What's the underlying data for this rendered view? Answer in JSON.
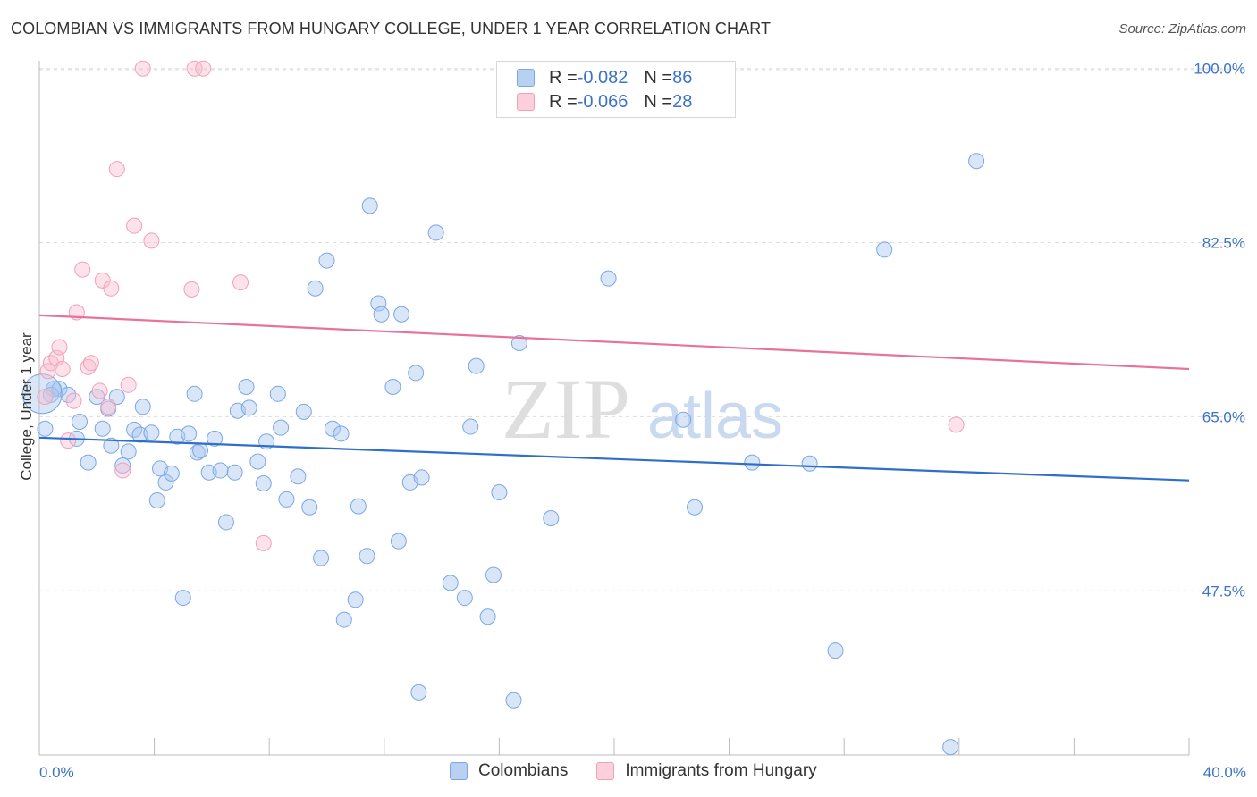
{
  "title": "COLOMBIAN VS IMMIGRANTS FROM HUNGARY COLLEGE, UNDER 1 YEAR CORRELATION CHART",
  "source": "Source: ZipAtlas.com",
  "watermark": {
    "zip": "ZIP",
    "atlas": "atlas"
  },
  "legend": [
    {
      "r_label": "R = ",
      "r_value": "-0.082",
      "n_label": "N = ",
      "n_value": "86"
    },
    {
      "r_label": "R = ",
      "r_value": "-0.066",
      "n_label": "N = ",
      "n_value": "28"
    }
  ],
  "bottom_legend": [
    "Colombians",
    "Immigrants from Hungary"
  ],
  "chart_data": {
    "type": "scatter",
    "title": "COLOMBIAN VS IMMIGRANTS FROM HUNGARY COLLEGE, UNDER 1 YEAR CORRELATION CHART",
    "xlabel": "",
    "ylabel": "College, Under 1 year",
    "xlim": [
      0,
      40
    ],
    "ylim": [
      31,
      101.5
    ],
    "x_tick_labels": [
      "0.0%",
      "40.0%"
    ],
    "y_ticks": [
      {
        "value": 100,
        "label": "100.0%"
      },
      {
        "value": 82.5,
        "label": "82.5%"
      },
      {
        "value": 65,
        "label": "65.0%"
      },
      {
        "value": 47.5,
        "label": "47.5%"
      }
    ],
    "grid": true,
    "legend_position": "top-center",
    "colors": {
      "Colombians": "#7aa7e6",
      "Immigrants from Hungary": "#f2a0b8",
      "blue_line": "#2f6fcc",
      "pink_line": "#e8739a"
    },
    "series": [
      {
        "name": "Colombians",
        "trend": {
          "x": [
            0,
            40
          ],
          "y": [
            62.9,
            58.6
          ]
        },
        "points": [
          [
            0.2,
            63.8
          ],
          [
            0.5,
            67.8
          ],
          [
            0.7,
            67.8
          ],
          [
            1.0,
            67.2
          ],
          [
            0.4,
            67.2
          ],
          [
            1.4,
            64.5
          ],
          [
            1.3,
            62.8
          ],
          [
            1.7,
            60.4
          ],
          [
            2.0,
            67.0
          ],
          [
            2.2,
            63.8
          ],
          [
            2.4,
            65.8
          ],
          [
            2.5,
            62.1
          ],
          [
            2.7,
            67.0
          ],
          [
            2.9,
            60.1
          ],
          [
            3.1,
            61.5
          ],
          [
            3.3,
            63.7
          ],
          [
            3.5,
            63.2
          ],
          [
            3.6,
            66.0
          ],
          [
            3.9,
            63.4
          ],
          [
            4.1,
            56.6
          ],
          [
            4.2,
            59.8
          ],
          [
            4.4,
            58.4
          ],
          [
            4.6,
            59.3
          ],
          [
            4.8,
            63.0
          ],
          [
            5.0,
            46.8
          ],
          [
            5.2,
            63.3
          ],
          [
            5.4,
            67.3
          ],
          [
            5.5,
            61.4
          ],
          [
            5.6,
            61.6
          ],
          [
            5.9,
            59.4
          ],
          [
            6.1,
            62.8
          ],
          [
            6.3,
            59.6
          ],
          [
            6.5,
            54.4
          ],
          [
            6.8,
            59.4
          ],
          [
            6.9,
            65.6
          ],
          [
            7.2,
            68.0
          ],
          [
            7.3,
            65.9
          ],
          [
            7.6,
            60.5
          ],
          [
            7.8,
            58.3
          ],
          [
            7.9,
            62.5
          ],
          [
            8.3,
            67.3
          ],
          [
            8.4,
            63.9
          ],
          [
            8.6,
            56.7
          ],
          [
            9.0,
            59.0
          ],
          [
            9.2,
            65.5
          ],
          [
            9.4,
            55.9
          ],
          [
            9.6,
            77.9
          ],
          [
            9.8,
            50.8
          ],
          [
            10.0,
            80.7
          ],
          [
            10.2,
            63.8
          ],
          [
            10.5,
            63.3
          ],
          [
            10.6,
            44.6
          ],
          [
            11.0,
            46.6
          ],
          [
            11.1,
            56.0
          ],
          [
            11.4,
            51.0
          ],
          [
            11.5,
            86.2
          ],
          [
            11.8,
            76.4
          ],
          [
            11.9,
            75.3
          ],
          [
            12.3,
            68.0
          ],
          [
            12.5,
            52.5
          ],
          [
            12.6,
            75.3
          ],
          [
            12.9,
            58.4
          ],
          [
            13.1,
            69.4
          ],
          [
            13.2,
            37.3
          ],
          [
            13.3,
            58.9
          ],
          [
            13.8,
            83.5
          ],
          [
            14.3,
            48.3
          ],
          [
            14.8,
            46.8
          ],
          [
            15.0,
            64.0
          ],
          [
            15.2,
            70.1
          ],
          [
            15.6,
            44.9
          ],
          [
            15.8,
            49.1
          ],
          [
            16.0,
            57.4
          ],
          [
            16.5,
            36.5
          ],
          [
            16.7,
            72.4
          ],
          [
            17.8,
            54.8
          ],
          [
            19.8,
            78.9
          ],
          [
            22.4,
            64.7
          ],
          [
            22.8,
            55.9
          ],
          [
            24.8,
            60.4
          ],
          [
            26.8,
            60.3
          ],
          [
            27.7,
            41.5
          ],
          [
            29.4,
            81.8
          ],
          [
            31.7,
            31.8
          ],
          [
            32.6,
            90.7
          ],
          [
            0.1,
            67.3
          ]
        ]
      },
      {
        "name": "Immigrants from Hungary",
        "trend": {
          "x": [
            0,
            40
          ],
          "y": [
            75.2,
            69.8
          ]
        },
        "points": [
          [
            0.2,
            67.0
          ],
          [
            0.3,
            69.6
          ],
          [
            0.4,
            70.4
          ],
          [
            0.6,
            70.9
          ],
          [
            0.7,
            72.0
          ],
          [
            0.8,
            69.8
          ],
          [
            1.0,
            62.6
          ],
          [
            1.2,
            66.6
          ],
          [
            1.3,
            75.5
          ],
          [
            1.5,
            79.8
          ],
          [
            1.7,
            70.0
          ],
          [
            1.8,
            70.4
          ],
          [
            2.1,
            67.6
          ],
          [
            2.2,
            78.7
          ],
          [
            2.4,
            66.0
          ],
          [
            2.5,
            77.9
          ],
          [
            2.7,
            89.9
          ],
          [
            2.9,
            59.6
          ],
          [
            3.1,
            68.2
          ],
          [
            3.3,
            84.2
          ],
          [
            3.6,
            100.0
          ],
          [
            3.9,
            82.7
          ],
          [
            5.3,
            77.8
          ],
          [
            5.4,
            100.0
          ],
          [
            5.7,
            100.0
          ],
          [
            7.0,
            78.5
          ],
          [
            7.8,
            52.3
          ],
          [
            31.9,
            64.2
          ]
        ]
      }
    ]
  }
}
